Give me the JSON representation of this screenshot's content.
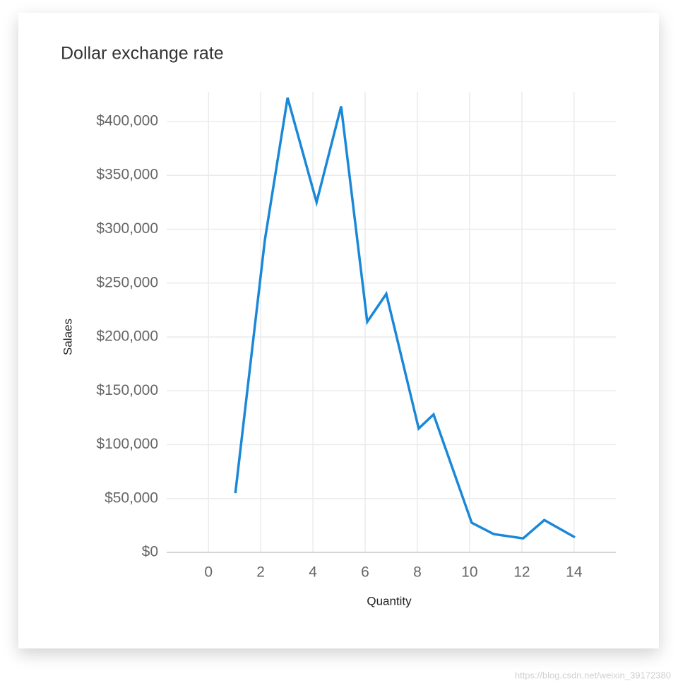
{
  "chart_data": {
    "type": "line",
    "title": "Dollar exchange rate",
    "x_label": "Quantity",
    "y_label": "Salaes",
    "x": [
      1.03,
      2.16,
      3.03,
      4.14,
      5.08,
      6.08,
      6.81,
      8.05,
      8.62,
      10.08,
      10.92,
      12.05,
      12.86,
      14.03
    ],
    "series": [
      {
        "name": "Salaes",
        "color": "#1a88d8",
        "values": [
          55000,
          290000,
          422000,
          325000,
          414000,
          214000,
          240000,
          115000,
          128000,
          27500,
          17000,
          13000,
          30000,
          14000
        ]
      }
    ],
    "xlim": [
      -1.6,
      15.6
    ],
    "xticks": [
      0,
      2,
      4,
      6,
      8,
      10,
      12,
      14
    ],
    "ylim": [
      0,
      427500
    ],
    "yticks": [
      {
        "value": 0,
        "label": "$0"
      },
      {
        "value": 50000,
        "label": "$50,000"
      },
      {
        "value": 100000,
        "label": "$100,000"
      },
      {
        "value": 150000,
        "label": "$150,000"
      },
      {
        "value": 200000,
        "label": "$200,000"
      },
      {
        "value": 250000,
        "label": "$250,000"
      },
      {
        "value": 300000,
        "label": "$300,000"
      },
      {
        "value": 350000,
        "label": "$350,000"
      },
      {
        "value": 400000,
        "label": "$400,000"
      }
    ],
    "grid": true
  },
  "watermark": "https://blog.csdn.net/weixin_39172380"
}
